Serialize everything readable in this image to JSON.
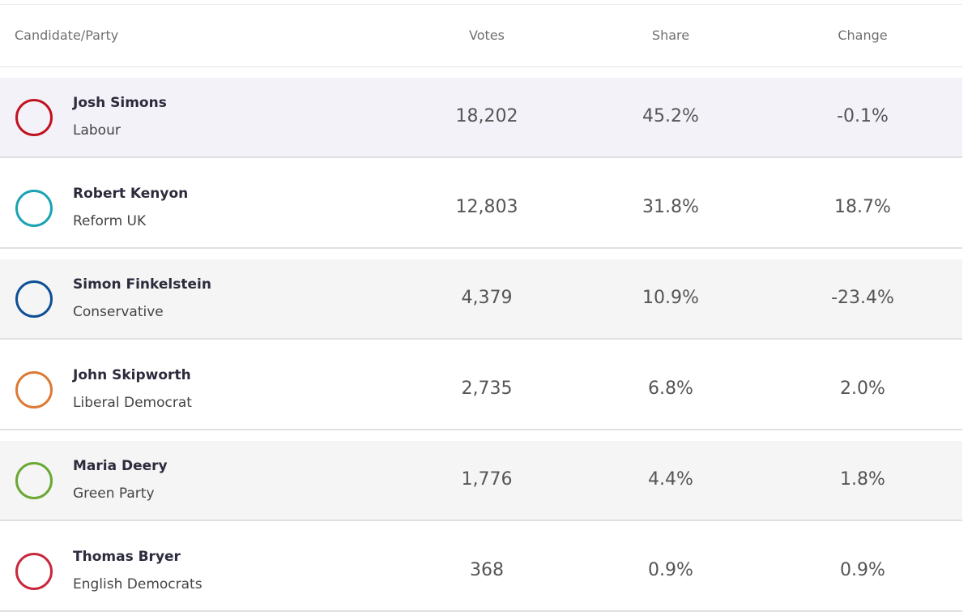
{
  "header": {
    "candidate": "Candidate/Party",
    "votes": "Votes",
    "share": "Share",
    "change": "Change"
  },
  "rows": [
    {
      "name": "Josh Simons",
      "party": "Labour",
      "votes": "18,202",
      "share": "45.2%",
      "change": "-0.1%",
      "color": "#c1121f",
      "highlight": true
    },
    {
      "name": "Robert Kenyon",
      "party": "Reform UK",
      "votes": "12,803",
      "share": "31.8%",
      "change": "18.7%",
      "color": "#1aa3b3",
      "highlight": false
    },
    {
      "name": "Simon Finkelstein",
      "party": "Conservative",
      "votes": "4,379",
      "share": "10.9%",
      "change": "-23.4%",
      "color": "#0d4f94",
      "highlight": false
    },
    {
      "name": "John Skipworth",
      "party": "Liberal Democrat",
      "votes": "2,735",
      "share": "6.8%",
      "change": "2.0%",
      "color": "#dd7a35",
      "highlight": false
    },
    {
      "name": "Maria Deery",
      "party": "Green Party",
      "votes": "1,776",
      "share": "4.4%",
      "change": "1.8%",
      "color": "#6aa832",
      "highlight": false
    },
    {
      "name": "Thomas Bryer",
      "party": "English Democrats",
      "votes": "368",
      "share": "0.9%",
      "change": "0.9%",
      "color": "#c8283c",
      "highlight": false
    }
  ]
}
